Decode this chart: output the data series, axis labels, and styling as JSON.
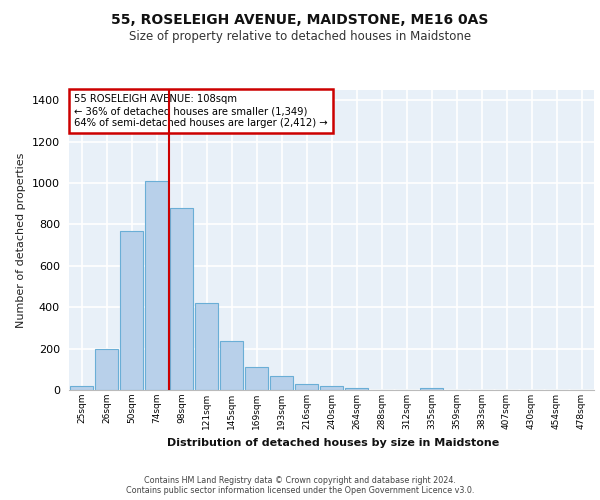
{
  "title": "55, ROSELEIGH AVENUE, MAIDSTONE, ME16 0AS",
  "subtitle": "Size of property relative to detached houses in Maidstone",
  "xlabel": "Distribution of detached houses by size in Maidstone",
  "ylabel": "Number of detached properties",
  "bar_color": "#b8d0ea",
  "bar_edge_color": "#6aaed6",
  "background_color": "#e8f0f8",
  "grid_color": "#ffffff",
  "annotation_text": "55 ROSELEIGH AVENUE: 108sqm\n← 36% of detached houses are smaller (1,349)\n64% of semi-detached houses are larger (2,412) →",
  "annotation_box_color": "#ffffff",
  "annotation_box_edge_color": "#cc0000",
  "vline_color": "#cc0000",
  "vline_x_index": 4,
  "categories": [
    "25sqm",
    "26sqm",
    "50sqm",
    "74sqm",
    "98sqm",
    "121sqm",
    "145sqm",
    "169sqm",
    "193sqm",
    "216sqm",
    "240sqm",
    "264sqm",
    "288sqm",
    "312sqm",
    "335sqm",
    "359sqm",
    "383sqm",
    "407sqm",
    "430sqm",
    "454sqm",
    "478sqm"
  ],
  "values": [
    20,
    200,
    770,
    1010,
    880,
    420,
    235,
    110,
    70,
    27,
    20,
    10,
    0,
    0,
    10,
    0,
    0,
    0,
    0,
    0,
    0
  ],
  "ylim": [
    0,
    1450
  ],
  "yticks": [
    0,
    200,
    400,
    600,
    800,
    1000,
    1200,
    1400
  ],
  "footer_line1": "Contains HM Land Registry data © Crown copyright and database right 2024.",
  "footer_line2": "Contains public sector information licensed under the Open Government Licence v3.0."
}
